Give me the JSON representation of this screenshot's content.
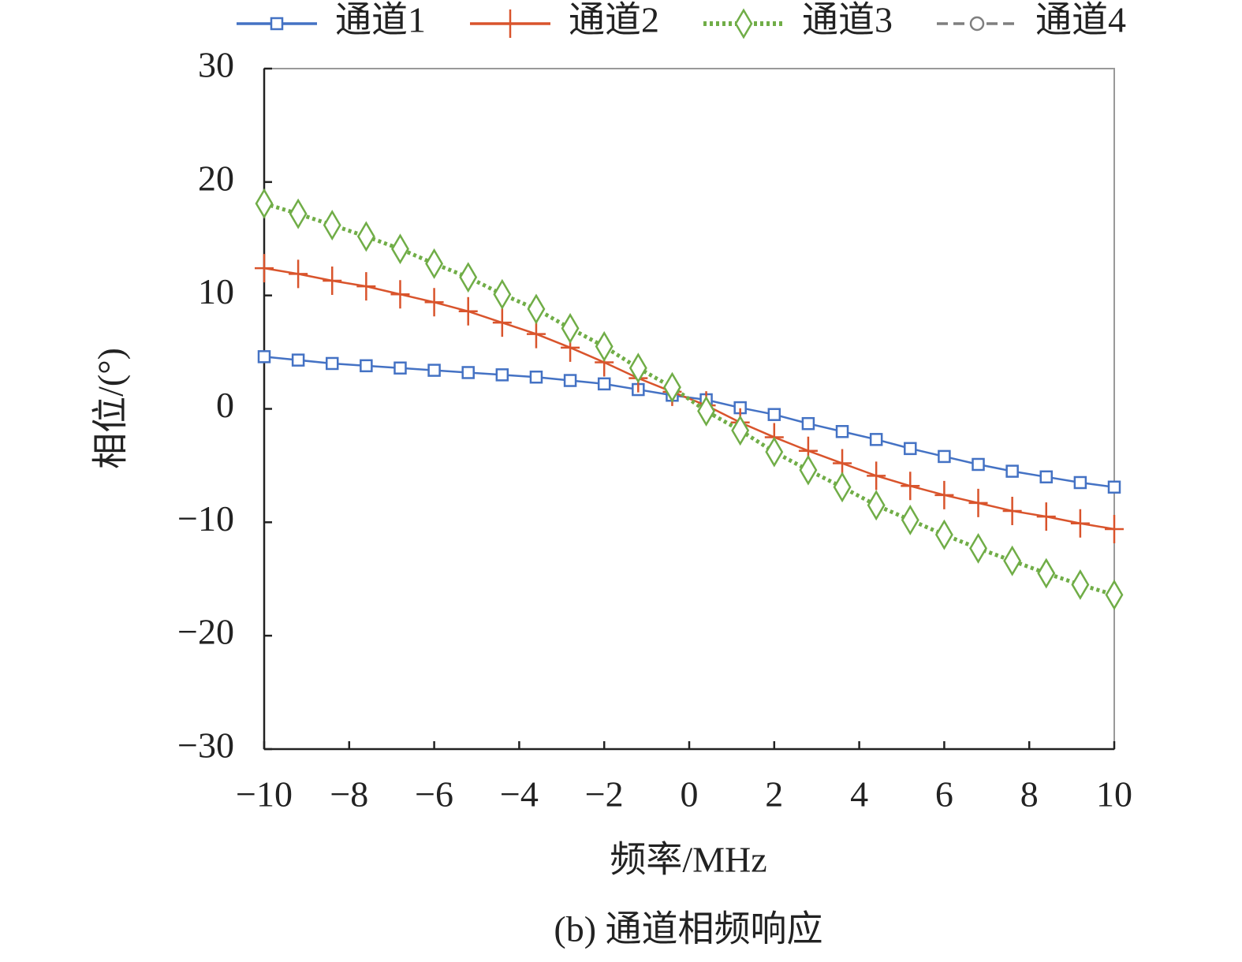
{
  "chart_data": {
    "type": "line",
    "caption": "(b) 通道相频响应",
    "x_label": "频率/MHz",
    "y_label": "相位/(°)",
    "x": [
      -10,
      -9.2,
      -8.4,
      -7.6,
      -6.8,
      -6,
      -5.2,
      -4.4,
      -3.6,
      -2.8,
      -2,
      -1.2,
      -0.4,
      0.4,
      1.2,
      2,
      2.8,
      3.6,
      4.4,
      5.2,
      6,
      6.8,
      7.6,
      8.4,
      9.2,
      10
    ],
    "series": [
      {
        "name": "通道1",
        "color": "#4472c4",
        "line_style": "solid",
        "marker": "square",
        "values": [
          4.6,
          4.3,
          4.0,
          3.8,
          3.6,
          3.4,
          3.2,
          3.0,
          2.8,
          2.5,
          2.2,
          1.7,
          1.2,
          0.8,
          0.1,
          -0.5,
          -1.3,
          -2.0,
          -2.7,
          -3.5,
          -4.2,
          -4.9,
          -5.5,
          -6.0,
          -6.5,
          -6.9
        ]
      },
      {
        "name": "通道2",
        "color": "#d9542c",
        "line_style": "solid",
        "marker": "plus",
        "values": [
          12.4,
          11.9,
          11.3,
          10.8,
          10.1,
          9.4,
          8.6,
          7.6,
          6.6,
          5.4,
          4.1,
          2.7,
          1.5,
          0.3,
          -1.2,
          -2.5,
          -3.7,
          -4.8,
          -5.9,
          -6.8,
          -7.6,
          -8.3,
          -9.0,
          -9.5,
          -10.1,
          -10.6
        ]
      },
      {
        "name": "通道3",
        "color": "#70ad47",
        "line_style": "dotted",
        "marker": "diamond",
        "values": [
          18.1,
          17.2,
          16.2,
          15.2,
          14.1,
          12.8,
          11.6,
          10.1,
          8.8,
          7.1,
          5.5,
          3.6,
          1.9,
          -0.2,
          -1.9,
          -3.8,
          -5.4,
          -6.9,
          -8.5,
          -9.8,
          -11.1,
          -12.3,
          -13.4,
          -14.5,
          -15.5,
          -16.4
        ]
      },
      {
        "name": "通道4",
        "color": "#7f7f7f",
        "line_style": "dashed",
        "marker": "circle",
        "values": [
          null,
          null,
          null,
          null,
          null,
          null,
          null,
          null,
          null,
          null,
          null,
          null,
          null,
          null,
          null,
          null,
          null,
          null,
          null,
          null,
          null,
          null,
          null,
          null,
          null,
          null
        ]
      }
    ],
    "xlim": [
      -10,
      10
    ],
    "xticks": [
      {
        "value": -10,
        "label": "−10"
      },
      {
        "value": -8,
        "label": "−8"
      },
      {
        "value": -6,
        "label": "−6"
      },
      {
        "value": -4,
        "label": "−4"
      },
      {
        "value": -2,
        "label": "−2"
      },
      0,
      2,
      4,
      6,
      8,
      10
    ],
    "ylim": [
      -30,
      30
    ],
    "yticks": [
      {
        "value": -30,
        "label": "−30"
      },
      {
        "value": -20,
        "label": "−20"
      },
      {
        "value": -10,
        "label": "−10"
      },
      0,
      10,
      20,
      30
    ],
    "legend": "top"
  }
}
